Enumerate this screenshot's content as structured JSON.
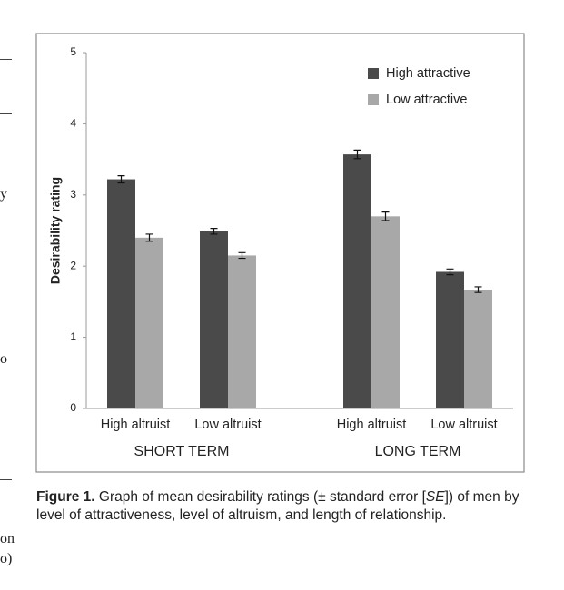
{
  "chart_data": {
    "type": "bar",
    "y_label": "Desirability rating",
    "categories": [
      "High altruist",
      "Low altruist",
      "High altruist",
      "Low altruist"
    ],
    "groups": [
      "SHORT TERM",
      "LONG TERM"
    ],
    "series": [
      {
        "name": "High attractive",
        "color": "#4a4a4a",
        "values": [
          3.22,
          2.49,
          3.57,
          1.92
        ],
        "errors": [
          0.05,
          0.04,
          0.06,
          0.04
        ]
      },
      {
        "name": "Low attractive",
        "color": "#a8a8a8",
        "values": [
          2.4,
          2.15,
          2.7,
          1.67
        ],
        "errors": [
          0.05,
          0.04,
          0.06,
          0.04
        ]
      }
    ],
    "ylim": [
      0,
      5
    ],
    "yticks": [
      0,
      1,
      2,
      3,
      4,
      5
    ],
    "grid": false,
    "legend": "top-right"
  },
  "caption": {
    "label": "Figure 1.",
    "text_before": "Graph of mean desirability ratings (± standard error [",
    "italic": "SE",
    "text_after": "]) of men by level of attractiveness, level of altruism, and length of relationship."
  },
  "margin_fragments": [
    "y",
    "o",
    "on",
    "o)"
  ]
}
